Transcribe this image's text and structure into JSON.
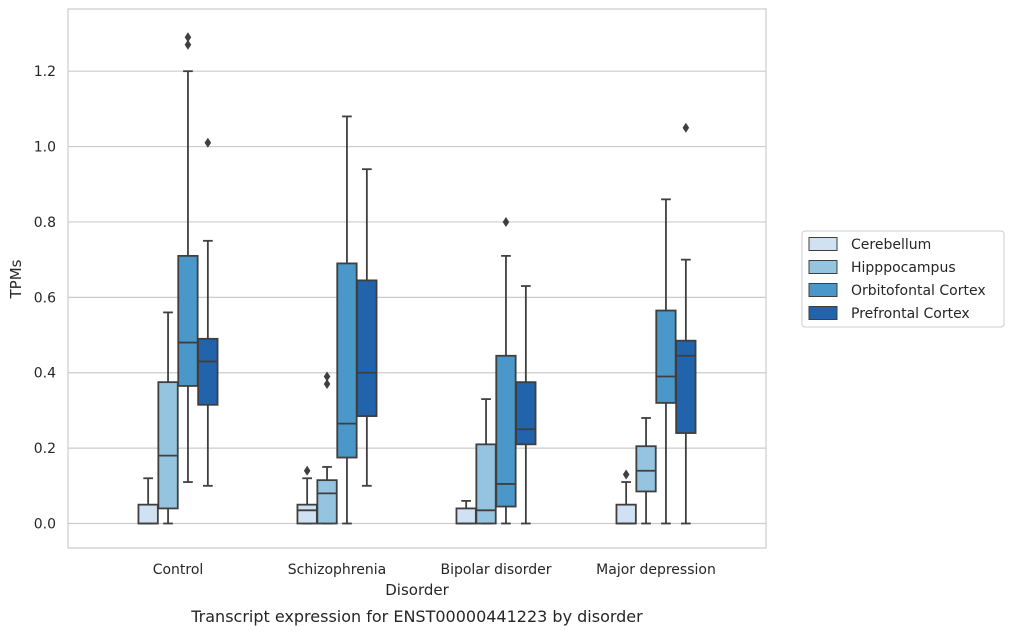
{
  "chart_data": {
    "type": "box",
    "caption": "Transcript expression for ENST00000441223 by disorder",
    "xlabel": "Disorder",
    "ylabel": "TPMs",
    "ylim": [
      -0.065,
      1.365
    ],
    "yticks": [
      0.0,
      0.2,
      0.4,
      0.6,
      0.8,
      1.0,
      1.2
    ],
    "ytick_labels": [
      "0.0",
      "0.2",
      "0.4",
      "0.6",
      "0.8",
      "1.0",
      "1.2"
    ],
    "grid": "horizontal",
    "legend_position": "right",
    "categories": [
      "Control",
      "Schizophrenia",
      "Bipolar disorder",
      "Major depression"
    ],
    "series": [
      {
        "name": "Cerebellum",
        "color": "#d0e1f2",
        "boxes": [
          {
            "whislo": 0.0,
            "q1": 0.0,
            "med": 0.0,
            "q3": 0.05,
            "whishi": 0.12,
            "fliers": []
          },
          {
            "whislo": 0.0,
            "q1": 0.0,
            "med": 0.035,
            "q3": 0.05,
            "whishi": 0.12,
            "fliers": [
              0.14
            ]
          },
          {
            "whislo": 0.0,
            "q1": 0.0,
            "med": 0.0,
            "q3": 0.04,
            "whishi": 0.06,
            "fliers": []
          },
          {
            "whislo": 0.0,
            "q1": 0.0,
            "med": 0.0,
            "q3": 0.05,
            "whishi": 0.11,
            "fliers": [
              0.13
            ]
          }
        ]
      },
      {
        "name": "Hipppocampus",
        "color": "#94c4df",
        "boxes": [
          {
            "whislo": 0.0,
            "q1": 0.04,
            "med": 0.18,
            "q3": 0.375,
            "whishi": 0.56,
            "fliers": []
          },
          {
            "whislo": 0.0,
            "q1": 0.0,
            "med": 0.08,
            "q3": 0.115,
            "whishi": 0.15,
            "fliers": [
              0.37,
              0.39
            ]
          },
          {
            "whislo": 0.0,
            "q1": 0.0,
            "med": 0.035,
            "q3": 0.21,
            "whishi": 0.33,
            "fliers": []
          },
          {
            "whislo": 0.0,
            "q1": 0.085,
            "med": 0.14,
            "q3": 0.205,
            "whishi": 0.28,
            "fliers": []
          }
        ]
      },
      {
        "name": "Orbitofontal Cortex",
        "color": "#4a98c9",
        "boxes": [
          {
            "whislo": 0.11,
            "q1": 0.365,
            "med": 0.48,
            "q3": 0.71,
            "whishi": 1.2,
            "fliers": [
              1.27,
              1.29
            ]
          },
          {
            "whislo": 0.0,
            "q1": 0.175,
            "med": 0.265,
            "q3": 0.69,
            "whishi": 1.08,
            "fliers": []
          },
          {
            "whislo": 0.0,
            "q1": 0.045,
            "med": 0.105,
            "q3": 0.445,
            "whishi": 0.71,
            "fliers": [
              0.8
            ]
          },
          {
            "whislo": 0.0,
            "q1": 0.32,
            "med": 0.39,
            "q3": 0.565,
            "whishi": 0.86,
            "fliers": []
          }
        ]
      },
      {
        "name": "Prefrontal Cortex",
        "color": "#2164ab",
        "boxes": [
          {
            "whislo": 0.1,
            "q1": 0.315,
            "med": 0.43,
            "q3": 0.49,
            "whishi": 0.75,
            "fliers": [
              1.01
            ]
          },
          {
            "whislo": 0.1,
            "q1": 0.285,
            "med": 0.4,
            "q3": 0.645,
            "whishi": 0.94,
            "fliers": []
          },
          {
            "whislo": 0.0,
            "q1": 0.21,
            "med": 0.25,
            "q3": 0.375,
            "whishi": 0.63,
            "fliers": []
          },
          {
            "whislo": 0.0,
            "q1": 0.24,
            "med": 0.445,
            "q3": 0.485,
            "whishi": 0.7,
            "fliers": [
              1.05
            ]
          }
        ]
      }
    ]
  }
}
